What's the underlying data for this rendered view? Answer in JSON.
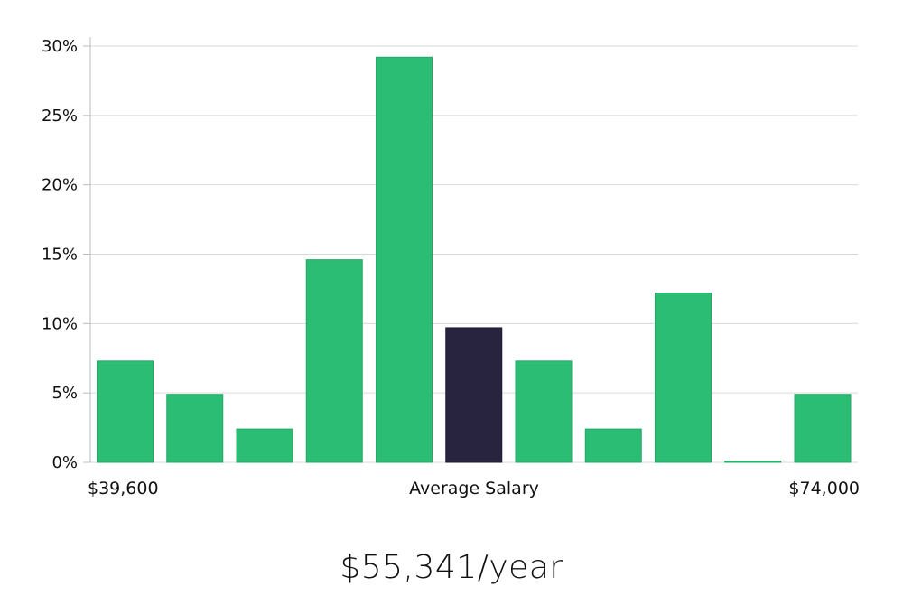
{
  "chart_data": {
    "type": "bar",
    "values": [
      7.3,
      4.9,
      2.4,
      14.6,
      29.2,
      9.7,
      7.3,
      2.4,
      12.2,
      0.0,
      4.9
    ],
    "highlight_index": 5,
    "ylim": [
      0,
      30
    ],
    "yticks": [
      0,
      5,
      10,
      15,
      20,
      25,
      30
    ],
    "ytick_labels": [
      "0%",
      "5%",
      "10%",
      "15%",
      "20%",
      "25%",
      "30%"
    ],
    "x_labels": {
      "left": "$39,600",
      "center": "Average Salary",
      "right": "$74,000"
    },
    "grid": true,
    "colors": {
      "bar": "#2bbd74",
      "bar_border": "#23a866",
      "highlight": "#28243f",
      "grid": "#d9d9d9",
      "axis": "#bbbbbb"
    }
  },
  "summary": {
    "salary": "$55,341/year"
  }
}
